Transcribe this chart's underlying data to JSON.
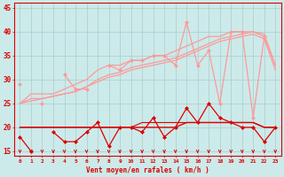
{
  "x": [
    0,
    1,
    2,
    3,
    4,
    5,
    6,
    7,
    8,
    9,
    10,
    11,
    12,
    13,
    14,
    15,
    16,
    17,
    18,
    19,
    20,
    21,
    22,
    23
  ],
  "smooth_upper": [
    25,
    27,
    27,
    27,
    28,
    29,
    30,
    32,
    33,
    33,
    34,
    34,
    35,
    35,
    36,
    37,
    38,
    39,
    39,
    40,
    40,
    40,
    39,
    33
  ],
  "smooth_mid": [
    25,
    26,
    26,
    26.5,
    27,
    27.5,
    28.5,
    30,
    31,
    31.5,
    32.5,
    33,
    33.5,
    34,
    34.5,
    35.5,
    36.5,
    37.5,
    38.5,
    39,
    39.5,
    40,
    39.5,
    33
  ],
  "smooth_low": [
    25,
    25.5,
    26,
    26.5,
    27,
    27.5,
    28.5,
    29.5,
    30.5,
    31,
    32,
    32.5,
    33,
    33.5,
    34,
    35,
    36,
    37,
    38,
    38.5,
    39,
    39.5,
    38.5,
    32
  ],
  "jagged_light": [
    29,
    null,
    25,
    null,
    31,
    28,
    28,
    null,
    33,
    32,
    34,
    34,
    35,
    35,
    33,
    42,
    33,
    36,
    25,
    40,
    40,
    22,
    39,
    null
  ],
  "dark_jagged": [
    18,
    15,
    null,
    19,
    17,
    17,
    19,
    21,
    16,
    20,
    20,
    19,
    22,
    18,
    20,
    24,
    21,
    25,
    22,
    21,
    20,
    20,
    17,
    20
  ],
  "dark_flat1": [
    20,
    20,
    20,
    20,
    20,
    20,
    20,
    20,
    20,
    20,
    20,
    20,
    20,
    20,
    20,
    21,
    21,
    21,
    21,
    21,
    21,
    21,
    20,
    20
  ],
  "dark_flat2": [
    20,
    20,
    20,
    20,
    20,
    20,
    20,
    20,
    20,
    20,
    20,
    21,
    21,
    21,
    21,
    21,
    21,
    21,
    21,
    21,
    21,
    21,
    20,
    20
  ],
  "xlabel": "Vent moyen/en rafales ( km/h )",
  "bg_color": "#cceaea",
  "grid_color": "#aacccc",
  "lc_light": "#ff9999",
  "lc_dark": "#dd0000",
  "ylim": [
    14,
    46
  ],
  "yticks": [
    15,
    20,
    25,
    30,
    35,
    40,
    45
  ],
  "xticks": [
    0,
    1,
    2,
    3,
    4,
    5,
    6,
    7,
    8,
    9,
    10,
    11,
    12,
    13,
    14,
    15,
    16,
    17,
    18,
    19,
    20,
    21,
    22,
    23
  ]
}
